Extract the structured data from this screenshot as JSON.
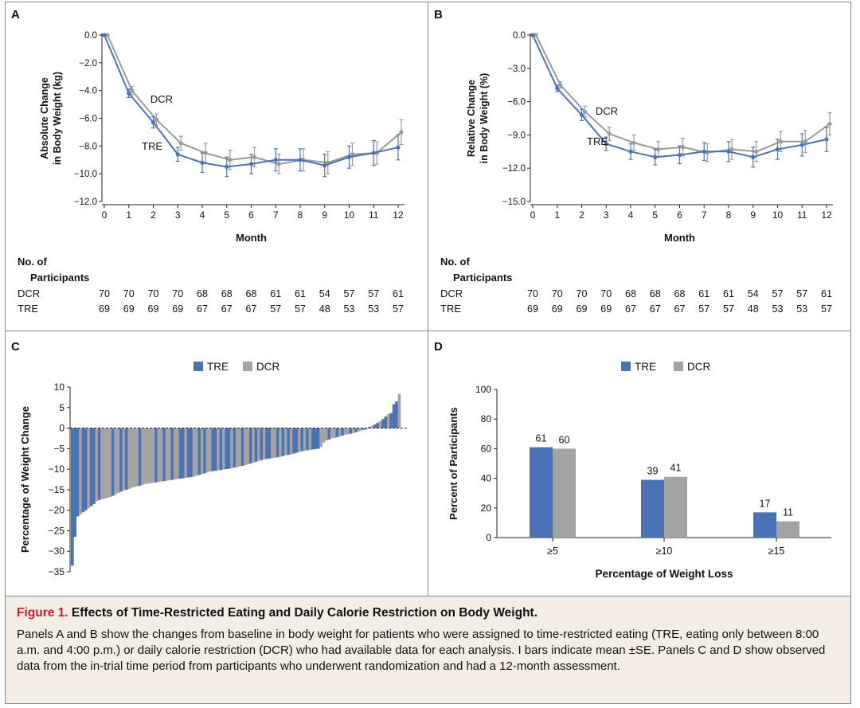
{
  "chart_data": [
    {
      "panel": "A",
      "type": "line",
      "ylabel": [
        "Absolute Change",
        "in Body Weight (kg)"
      ],
      "xlabel": "Month",
      "x": [
        0,
        1,
        2,
        3,
        4,
        5,
        6,
        7,
        8,
        9,
        10,
        11,
        12
      ],
      "ylim": [
        -12,
        0
      ],
      "yticks": [
        "0.0",
        "−2.0",
        "−4.0",
        "−6.0",
        "−8.0",
        "−10.0",
        "−12.0"
      ],
      "ytick_values": [
        0,
        -2,
        -4,
        -6,
        -8,
        -10,
        -12
      ],
      "series": [
        {
          "name": "DCR",
          "color": "#9a9a9a",
          "values": [
            0,
            -4.0,
            -6.1,
            -7.8,
            -8.5,
            -9.0,
            -8.8,
            -9.3,
            -9.0,
            -9.2,
            -8.6,
            -8.5,
            -7.0
          ],
          "err": [
            0.3,
            0.4,
            0.5,
            0.7,
            0.7,
            0.7,
            0.7,
            0.8,
            0.8,
            0.8,
            0.8,
            0.9
          ]
        },
        {
          "name": "TRE",
          "color": "#4a73b5",
          "values": [
            0,
            -4.2,
            -6.3,
            -8.6,
            -9.2,
            -9.5,
            -9.3,
            -9.0,
            -9.0,
            -9.4,
            -8.8,
            -8.5,
            -8.1
          ],
          "err": [
            0.3,
            0.4,
            0.5,
            0.7,
            0.7,
            0.7,
            0.8,
            0.8,
            0.8,
            0.8,
            0.9,
            0.9
          ]
        }
      ],
      "annotations": [
        {
          "text": "DCR"
        },
        {
          "text": "TRE"
        }
      ],
      "participants": {
        "title": [
          "No. of",
          "Participants"
        ],
        "rows": [
          {
            "label": "DCR",
            "values": [
              "70",
              "70",
              "70",
              "70",
              "68",
              "68",
              "68",
              "61",
              "61",
              "54",
              "57",
              "57",
              "61"
            ]
          },
          {
            "label": "TRE",
            "values": [
              "69",
              "69",
              "69",
              "69",
              "67",
              "67",
              "67",
              "57",
              "57",
              "48",
              "53",
              "53",
              "57"
            ]
          }
        ]
      }
    },
    {
      "panel": "B",
      "type": "line",
      "ylabel": [
        "Relative Change",
        "in Body Weight (%)"
      ],
      "xlabel": "Month",
      "x": [
        0,
        1,
        2,
        3,
        4,
        5,
        6,
        7,
        8,
        9,
        10,
        11,
        12
      ],
      "ylim": [
        -15,
        0
      ],
      "yticks": [
        "0.0",
        "−3.0",
        "−6.0",
        "−9.0",
        "−12.0",
        "−15.0"
      ],
      "ytick_values": [
        0,
        -3,
        -6,
        -9,
        -12,
        -15
      ],
      "series": [
        {
          "name": "DCR",
          "color": "#9a9a9a",
          "values": [
            0,
            -4.5,
            -6.9,
            -8.9,
            -9.7,
            -10.3,
            -10.1,
            -10.6,
            -10.3,
            -10.5,
            -9.6,
            -9.6,
            -8.0
          ],
          "err": [
            0.3,
            0.5,
            0.6,
            0.7,
            0.7,
            0.8,
            0.8,
            0.9,
            0.9,
            0.9,
            1.0,
            1.0
          ]
        },
        {
          "name": "TRE",
          "color": "#4a73b5",
          "values": [
            0,
            -4.8,
            -7.2,
            -9.8,
            -10.5,
            -11.0,
            -10.8,
            -10.5,
            -10.5,
            -11.0,
            -10.3,
            -9.9,
            -9.4
          ],
          "err": [
            0.3,
            0.5,
            0.6,
            0.7,
            0.7,
            0.8,
            0.8,
            0.9,
            0.9,
            0.9,
            1.0,
            1.1
          ]
        }
      ],
      "annotations": [
        {
          "text": "DCR"
        },
        {
          "text": "TRE"
        }
      ],
      "participants": {
        "title": [
          "No. of",
          "Participants"
        ],
        "rows": [
          {
            "label": "DCR",
            "values": [
              "70",
              "70",
              "70",
              "70",
              "68",
              "68",
              "68",
              "61",
              "61",
              "54",
              "57",
              "57",
              "61"
            ]
          },
          {
            "label": "TRE",
            "values": [
              "69",
              "69",
              "69",
              "69",
              "67",
              "67",
              "67",
              "57",
              "57",
              "48",
              "53",
              "53",
              "57"
            ]
          }
        ]
      }
    },
    {
      "panel": "C",
      "type": "bar",
      "ylabel": "Percentage of Weight Change",
      "ylim": [
        -35,
        10
      ],
      "yticks": [
        10,
        5,
        0,
        -5,
        -10,
        -15,
        -20,
        -25,
        -30,
        -35
      ],
      "legend": [
        {
          "name": "TRE",
          "color": "#4a73b5"
        },
        {
          "name": "DCR",
          "color": "#a3a3a3"
        }
      ],
      "values": [
        -33.5,
        -26.5,
        -21.5,
        -21.0,
        -20.5,
        -20.0,
        -19.5,
        -19.0,
        -18.5,
        -17.8,
        -17.5,
        -17.3,
        -17.2,
        -17.0,
        -16.8,
        -16.5,
        -16.2,
        -15.8,
        -15.5,
        -15.2,
        -15.0,
        -14.8,
        -14.5,
        -14.3,
        -14.2,
        -14.0,
        -13.8,
        -13.6,
        -13.5,
        -13.4,
        -13.3,
        -13.2,
        -13.1,
        -13.0,
        -12.9,
        -12.8,
        -12.7,
        -12.6,
        -12.5,
        -12.4,
        -12.3,
        -12.2,
        -12.1,
        -12.0,
        -11.9,
        -11.8,
        -11.6,
        -11.4,
        -11.2,
        -11.0,
        -10.8,
        -10.6,
        -10.5,
        -10.4,
        -10.3,
        -10.2,
        -10.1,
        -10.0,
        -9.9,
        -9.8,
        -9.6,
        -9.5,
        -9.3,
        -9.2,
        -9.0,
        -8.8,
        -8.6,
        -8.4,
        -8.2,
        -8.0,
        -7.8,
        -7.6,
        -7.5,
        -7.4,
        -7.3,
        -7.2,
        -7.1,
        -7.0,
        -6.8,
        -6.6,
        -6.5,
        -6.4,
        -6.2,
        -6.0,
        -5.8,
        -5.6,
        -5.5,
        -5.4,
        -5.3,
        -5.2,
        -5.1,
        -5.0,
        -4.6,
        -3.5,
        -3.0,
        -2.8,
        -2.5,
        -2.4,
        -2.2,
        -2.0,
        -1.8,
        -1.6,
        -1.5,
        -1.4,
        -1.2,
        -1.0,
        -0.8,
        -0.6,
        -0.4,
        -0.2,
        0.3,
        0.6,
        0.9,
        1.3,
        1.7,
        2.2,
        2.8,
        3.4,
        3.7,
        5.8,
        6.5,
        8.3
      ],
      "groups": [
        "TRE",
        "TRE",
        "TRE",
        "DCR",
        "TRE",
        "TRE",
        "DCR",
        "TRE",
        "TRE",
        "DCR",
        "TRE",
        "DCR",
        "DCR",
        "DCR",
        "DCR",
        "TRE",
        "DCR",
        "DCR",
        "TRE",
        "DCR",
        "TRE",
        "DCR",
        "DCR",
        "DCR",
        "DCR",
        "TRE",
        "DCR",
        "DCR",
        "DCR",
        "DCR",
        "DCR",
        "TRE",
        "DCR",
        "DCR",
        "TRE",
        "DCR",
        "DCR",
        "TRE",
        "DCR",
        "DCR",
        "TRE",
        "TRE",
        "DCR",
        "TRE",
        "TRE",
        "DCR",
        "DCR",
        "TRE",
        "DCR",
        "TRE",
        "DCR",
        "DCR",
        "TRE",
        "TRE",
        "DCR",
        "TRE",
        "DCR",
        "TRE",
        "TRE",
        "DCR",
        "TRE",
        "DCR",
        "DCR",
        "TRE",
        "DCR",
        "DCR",
        "TRE",
        "DCR",
        "TRE",
        "DCR",
        "TRE",
        "DCR",
        "TRE",
        "TRE",
        "DCR",
        "DCR",
        "TRE",
        "DCR",
        "TRE",
        "DCR",
        "TRE",
        "DCR",
        "TRE",
        "TRE",
        "DCR",
        "TRE",
        "DCR",
        "TRE",
        "DCR",
        "TRE",
        "TRE",
        "TRE",
        "DCR",
        "DCR",
        "DCR",
        "TRE",
        "DCR",
        "DCR",
        "TRE",
        "DCR",
        "TRE",
        "DCR",
        "DCR",
        "TRE",
        "DCR",
        "TRE",
        "DCR",
        "DCR",
        "TRE",
        "DCR",
        "TRE",
        "DCR",
        "TRE",
        "TRE",
        "DCR",
        "TRE",
        "TRE",
        "DCR",
        "TRE",
        "TRE",
        "TRE",
        "DCR"
      ]
    },
    {
      "panel": "D",
      "type": "bar",
      "ylabel": "Percent of Participants",
      "xlabel": "Percentage of Weight Loss",
      "ylim": [
        0,
        100
      ],
      "yticks": [
        0,
        20,
        40,
        60,
        80,
        100
      ],
      "categories": [
        "≥5",
        "≥10",
        "≥15"
      ],
      "series": [
        {
          "name": "TRE",
          "color": "#4a73b5",
          "values": [
            61,
            39,
            17
          ]
        },
        {
          "name": "DCR",
          "color": "#a3a3a3",
          "values": [
            60,
            41,
            11
          ]
        }
      ]
    }
  ],
  "caption": {
    "figure_label": "Figure 1.",
    "title": "Effects of Time-Restricted Eating and Daily Calorie Restriction on Body Weight.",
    "body": "Panels A and B show the changes from baseline in body weight for patients who were assigned to time-restricted eating (TRE, eating only between 8:00 a.m. and 4:00 p.m.) or daily calorie restriction (DCR) who had available data for each analysis. I bars indicate mean ±SE. Panels C and D show observed data from the in-trial time period from participants who underwent randomization and had a 12-month assessment."
  }
}
